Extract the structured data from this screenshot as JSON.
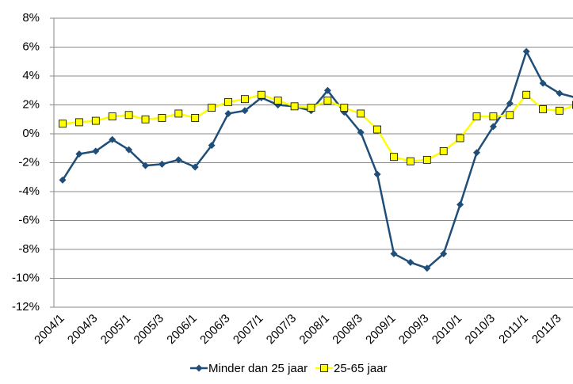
{
  "chart_data": {
    "type": "line",
    "categories": [
      "2004/1",
      null,
      "2004/3",
      null,
      "2005/1",
      null,
      "2005/3",
      null,
      "2006/1",
      null,
      "2006/3",
      null,
      "2007/1",
      null,
      "2007/3",
      null,
      "2008/1",
      null,
      "2008/3",
      null,
      "2009/1",
      null,
      "2009/3",
      null,
      "2010/1",
      null,
      "2010/3",
      null,
      "2011/1",
      null,
      "2011/3",
      null
    ],
    "series": [
      {
        "name": "Minder dan 25 jaar",
        "color": "#1f4e79",
        "marker": "diamond",
        "values": [
          -3.2,
          -1.4,
          -1.2,
          -0.4,
          -1.1,
          -2.2,
          -2.1,
          -1.8,
          -2.3,
          -0.8,
          1.4,
          1.6,
          2.5,
          2.0,
          1.9,
          1.6,
          3.0,
          1.5,
          0.1,
          -2.8,
          -8.3,
          -8.9,
          -9.3,
          -8.3,
          -4.9,
          -1.3,
          0.5,
          2.1,
          5.7,
          3.5,
          2.8,
          2.5
        ]
      },
      {
        "name": "25-65 jaar",
        "color": "#ffff00",
        "marker": "square",
        "values": [
          0.7,
          0.8,
          0.9,
          1.2,
          1.3,
          1.0,
          1.1,
          1.4,
          1.1,
          1.8,
          2.2,
          2.4,
          2.7,
          2.3,
          1.9,
          1.8,
          2.3,
          1.8,
          1.4,
          0.3,
          -1.6,
          -1.9,
          -1.8,
          -1.2,
          -0.3,
          1.2,
          1.2,
          1.3,
          2.7,
          1.7,
          1.6,
          2.0
        ]
      }
    ],
    "ylim": [
      -12,
      8
    ],
    "yticks": [
      {
        "value": -12,
        "label": "-12%"
      },
      {
        "value": -10,
        "label": "-10%"
      },
      {
        "value": -8,
        "label": "-8%"
      },
      {
        "value": -6,
        "label": "-6%"
      },
      {
        "value": -4,
        "label": "-4%"
      },
      {
        "value": -2,
        "label": "-2%"
      },
      {
        "value": 0,
        "label": "0%"
      },
      {
        "value": 2,
        "label": "2%"
      },
      {
        "value": 4,
        "label": "4%"
      },
      {
        "value": 6,
        "label": "6%"
      },
      {
        "value": 8,
        "label": "8%"
      }
    ],
    "grid": true,
    "legend": "bottom"
  }
}
